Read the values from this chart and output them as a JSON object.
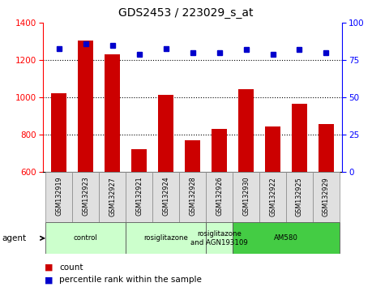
{
  "title": "GDS2453 / 223029_s_at",
  "samples": [
    "GSM132919",
    "GSM132923",
    "GSM132927",
    "GSM132921",
    "GSM132924",
    "GSM132928",
    "GSM132926",
    "GSM132930",
    "GSM132922",
    "GSM132925",
    "GSM132929"
  ],
  "counts": [
    1025,
    1305,
    1230,
    725,
    1015,
    770,
    830,
    1045,
    845,
    965,
    858
  ],
  "percentiles": [
    83,
    86,
    85,
    79,
    83,
    80,
    80,
    82,
    79,
    82,
    80
  ],
  "ylim_left": [
    600,
    1400
  ],
  "ylim_right": [
    0,
    100
  ],
  "yticks_left": [
    600,
    800,
    1000,
    1200,
    1400
  ],
  "yticks_right": [
    0,
    25,
    50,
    75,
    100
  ],
  "bar_color": "#cc0000",
  "dot_color": "#0000cc",
  "background_color": "#ffffff",
  "agent_label": "agent",
  "groups": [
    {
      "label": "control",
      "start": 0,
      "end": 3,
      "color": "#ccffcc"
    },
    {
      "label": "rosiglitazone",
      "start": 3,
      "end": 6,
      "color": "#ccffcc"
    },
    {
      "label": "rosiglitazone\nand AGN193109",
      "start": 6,
      "end": 7,
      "color": "#ccffcc"
    },
    {
      "label": "AM580",
      "start": 7,
      "end": 11,
      "color": "#44cc44"
    }
  ],
  "legend_count_label": "count",
  "legend_pct_label": "percentile rank within the sample"
}
